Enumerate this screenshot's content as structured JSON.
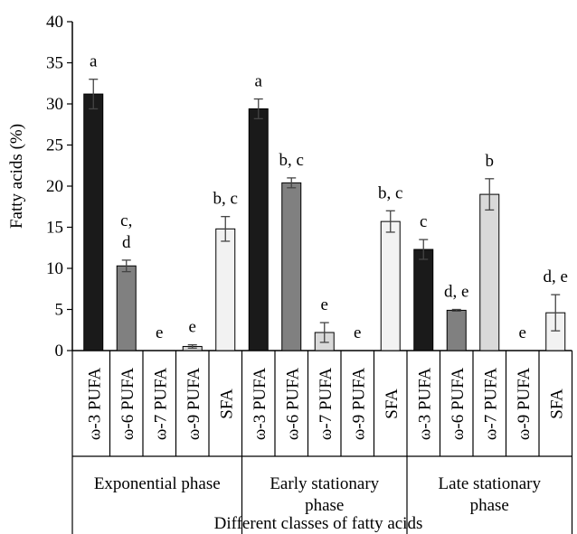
{
  "chart_data": {
    "type": "bar",
    "title": "",
    "ylabel": "Fatty acids (%)",
    "xlabel": "Different classes of fatty acids",
    "ylim": [
      0,
      40
    ],
    "yticks": [
      0,
      5,
      10,
      15,
      20,
      25,
      30,
      35,
      40
    ],
    "group_labels": [
      [
        "Exponential phase"
      ],
      [
        "Early stationary",
        "phase"
      ],
      [
        "Late stationary",
        "phase"
      ]
    ],
    "categories": [
      "ω-3 PUFA",
      "ω-6 PUFA",
      "ω-7 PUFA",
      "ω-9 PUFA",
      "SFA",
      "ω-3 PUFA",
      "ω-6 PUFA",
      "ω-7 PUFA",
      "ω-9 PUFA",
      "SFA",
      "ω-3 PUFA",
      "ω-6 PUFA",
      "ω-7 PUFA",
      "ω-9 PUFA",
      "SFA"
    ],
    "values": [
      31.2,
      10.3,
      0,
      0.5,
      14.8,
      29.4,
      20.4,
      2.2,
      0,
      15.7,
      12.3,
      4.9,
      19.0,
      0,
      4.6
    ],
    "errors": [
      1.8,
      0.7,
      0,
      0.2,
      1.5,
      1.2,
      0.6,
      1.2,
      0,
      1.3,
      1.2,
      0.1,
      1.9,
      0,
      2.2
    ],
    "significance_labels": [
      [
        "a"
      ],
      [
        "c,",
        "d"
      ],
      [
        "e"
      ],
      [
        "e"
      ],
      [
        "b, c"
      ],
      [
        "a"
      ],
      [
        "b, c"
      ],
      [
        "e"
      ],
      [
        "e"
      ],
      [
        "b, c"
      ],
      [
        "c"
      ],
      [
        "d, e"
      ],
      [
        "b"
      ],
      [
        "e"
      ],
      [
        "d, e"
      ]
    ],
    "bar_colors": [
      "#1a1a1a",
      "#808080",
      "#cfcfcf",
      "#d9d9d9",
      "#f2f2f2",
      "#1a1a1a",
      "#808080",
      "#d9d9d9",
      "#d9d9d9",
      "#f2f2f2",
      "#1a1a1a",
      "#808080",
      "#d9d9d9",
      "#d9d9d9",
      "#f2f2f2"
    ],
    "grid": false,
    "legend": "none"
  }
}
